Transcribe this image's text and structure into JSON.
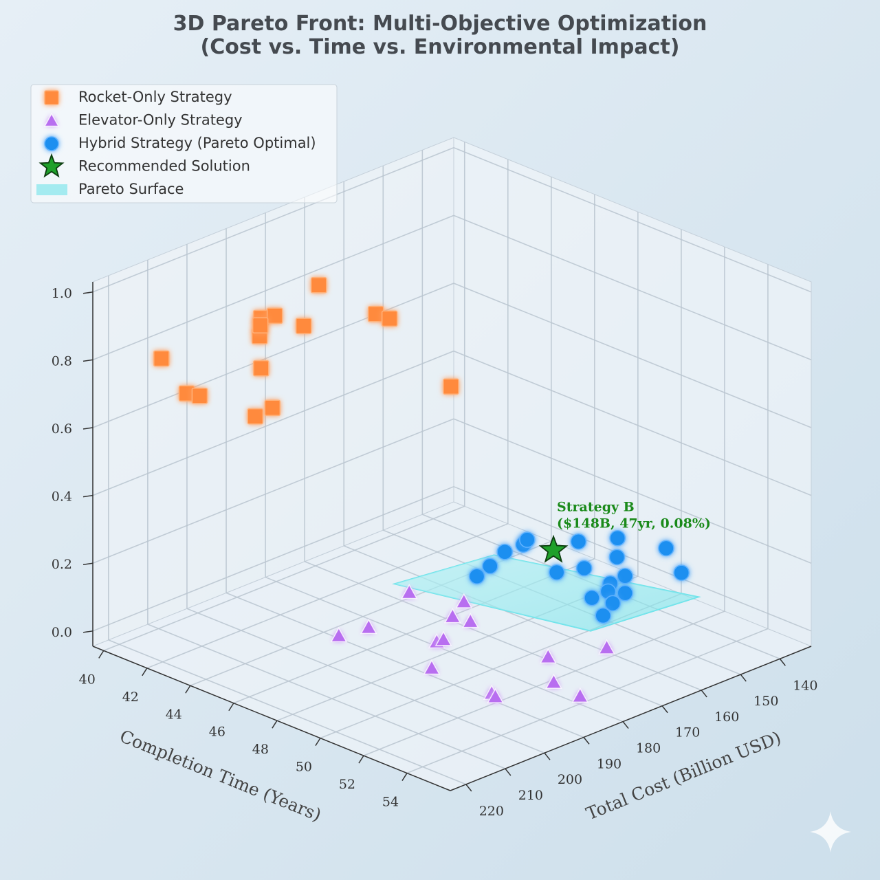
{
  "chart_data": {
    "type": "scatter3d",
    "title": "3D Pareto Front: Multi-Objective Optimization",
    "subtitle": "(Cost vs. Time vs. Environmental Impact)",
    "xlabel": "Completion Time (Years)",
    "ylabel": "Total Cost (Billion USD)",
    "xlim": [
      39.5,
      56
    ],
    "ylim": [
      224,
      132
    ],
    "zlim": [
      -0.045,
      1.03
    ],
    "xticks": [
      40,
      42,
      44,
      46,
      48,
      50,
      52,
      54
    ],
    "yticks": [
      140,
      150,
      160,
      170,
      180,
      190,
      200,
      210,
      220
    ],
    "zticks": [
      {
        "value": 0,
        "label": "0.0"
      },
      0.2,
      0.4,
      0.6,
      0.8,
      {
        "value": 1,
        "label": "1.0"
      }
    ],
    "grid": true,
    "legend": "upper left",
    "series": [
      {
        "name": "Rocket-Only Strategy",
        "color": "#ff8a3d",
        "marker": "square",
        "x": [
          41.0,
          43.0,
          41.1,
          43.1,
          44.7,
          42.9,
          44.1,
          45.9,
          45.6,
          42.0,
          45.8,
          45.9,
          45.7,
          47.7,
          43.9
        ],
        "y": [
          214.8,
          219.4,
          205.6,
          201.0,
          210.2,
          196.4,
          191.8,
          205.6,
          214.8,
          196.4,
          213.0,
          187.2,
          182.6,
          178.0,
          205.6
        ],
        "z": [
          0.8,
          0.77,
          0.65,
          0.91,
          0.94,
          0.89,
          0.99,
          0.98,
          0.89,
          0.57,
          0.77,
          0.93,
          0.89,
          0.72,
          0.93
        ]
      },
      {
        "name": "Elevator-Only Strategy",
        "color": "#b86ef0",
        "marker": "triangle",
        "x": [
          46.5,
          47.9,
          48.1,
          48.4,
          46.6,
          46.0,
          48.8,
          49.4,
          49.8,
          53.0,
          54.6,
          54.0,
          53.4,
          53.1,
          55.4
        ],
        "y": [
          182.0,
          175.8,
          179.8,
          176.9,
          192.9,
          197.2,
          187.7,
          189.3,
          194.5,
          182.5,
          176.4,
          186.6,
          199.1,
          196.5,
          187.6
        ],
        "z": [
          0.1,
          0.08,
          0.06,
          0.04,
          0.05,
          0.03,
          0.04,
          0.07,
          0.02,
          0.08,
          0.12,
          0.05,
          0.06,
          0.03,
          0.05
        ]
      },
      {
        "name": "Hybrid Strategy (Pareto Optimal)",
        "color": "#1e8ff0",
        "marker": "circle",
        "x": [
          48.1,
          48.4,
          48.7,
          49.1,
          49.3,
          49.9,
          49.8,
          50.1,
          50.5,
          50.8,
          52.0,
          52.4,
          50.9,
          50.6,
          51.1,
          51.4,
          51.2,
          51.4,
          51.5
        ],
        "y": [
          173.6,
          171.9,
          169.8,
          167.3,
          167.4,
          163.2,
          157.1,
          157.3,
          151.0,
          152.8,
          146.9,
          145.2,
          151.3,
          153.4,
          152.4,
          158.4,
          161.4,
          157.2,
          160.2
        ],
        "z": [
          0.15,
          0.18,
          0.22,
          0.24,
          0.26,
          0.16,
          0.22,
          0.15,
          0.22,
          0.18,
          0.21,
          0.14,
          0.12,
          0.1,
          0.08,
          0.12,
          0.11,
          0.08,
          0.06
        ]
      },
      {
        "name": "Recommended Solution",
        "color": "#1fa02a",
        "marker": "star",
        "x": [
          47
        ],
        "y": [
          148
        ],
        "z": [
          0.08
        ]
      }
    ],
    "surface": {
      "name": "Pareto Surface",
      "color": "#6fe3ea",
      "x": [
        44.7,
        46.3,
        53.4,
        51.9
      ],
      "y": [
        175.8,
        159.3,
        146.4,
        165.6
      ],
      "z": [
        0.05,
        0.1,
        0.1,
        0.05
      ]
    },
    "annotation": {
      "text": [
        "Strategy B",
        "($148B, 47yr, 0.08%)"
      ],
      "color": "#1a8a1a"
    }
  }
}
